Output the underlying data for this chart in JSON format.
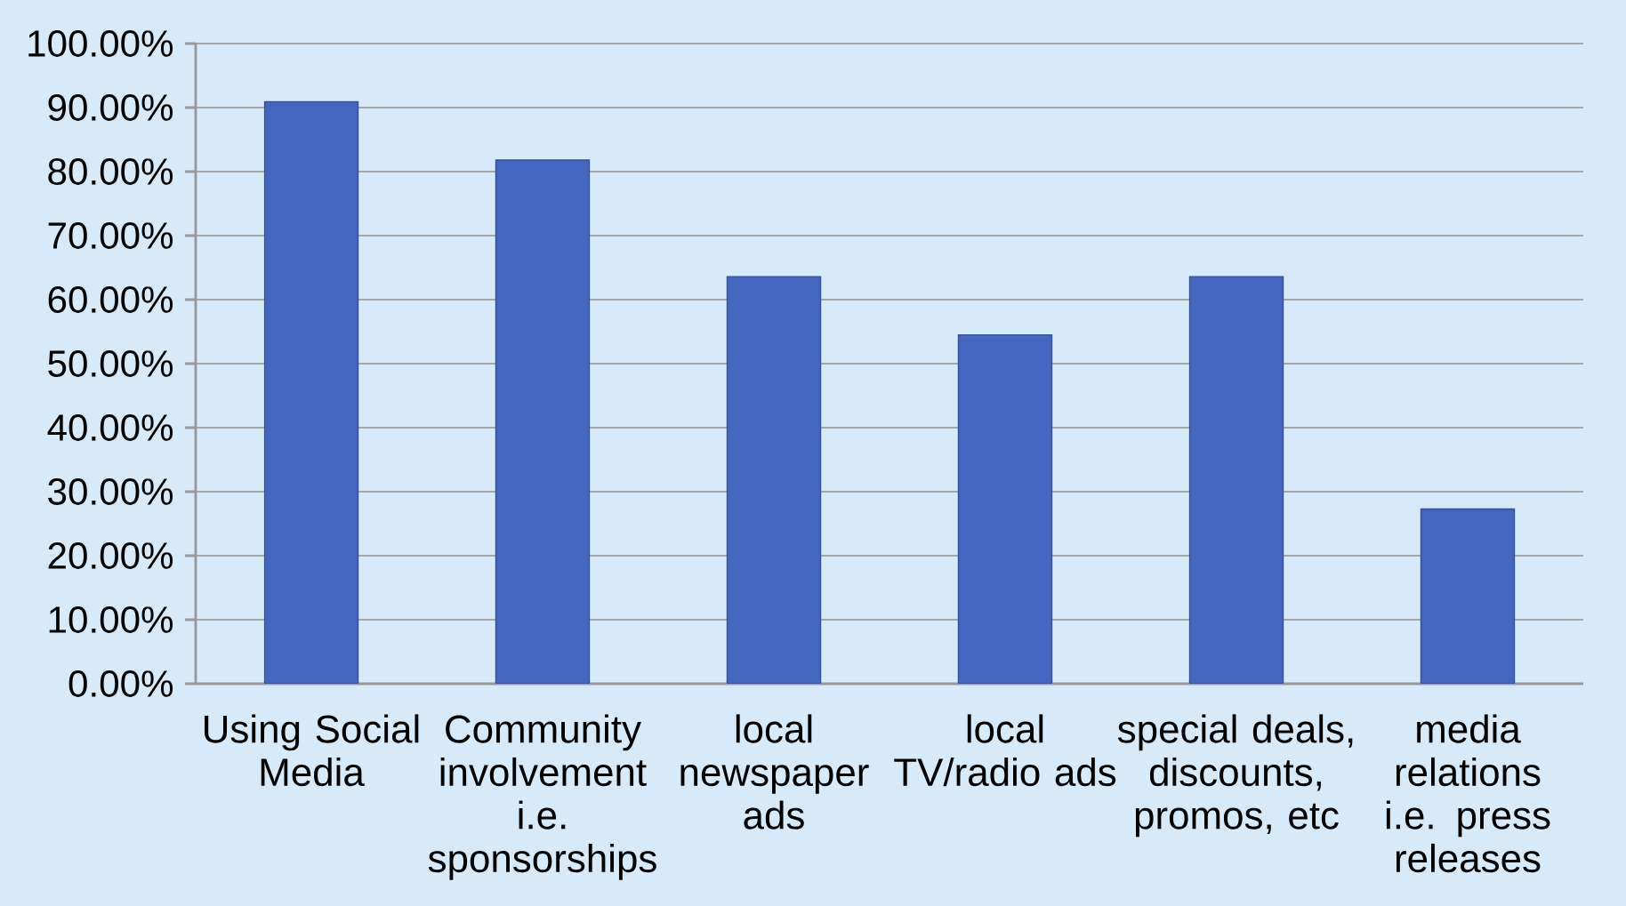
{
  "chart_data": {
    "type": "bar",
    "categories": [
      "Using Social Media",
      "Community involvement i.e. sponsorships",
      "local newspaper ads",
      "local TV/radio ads",
      "special deals, discounts, promos, etc",
      "media relations i.e. press releases"
    ],
    "values": [
      90.9,
      81.8,
      63.6,
      54.5,
      63.6,
      27.3
    ],
    "color": "#4566bf",
    "ylim": [
      0,
      100
    ],
    "yticks": [
      {
        "value": 0,
        "label": "0.00%"
      },
      {
        "value": 10,
        "label": "10.00%"
      },
      {
        "value": 20,
        "label": "20.00%"
      },
      {
        "value": 30,
        "label": "30.00%"
      },
      {
        "value": 40,
        "label": "40.00%"
      },
      {
        "value": 50,
        "label": "50.00%"
      },
      {
        "value": 60,
        "label": "60.00%"
      },
      {
        "value": 70,
        "label": "70.00%"
      },
      {
        "value": 80,
        "label": "80.00%"
      },
      {
        "value": 90,
        "label": "90.00%"
      },
      {
        "value": 100,
        "label": "100.00%"
      }
    ],
    "grid": "y"
  }
}
